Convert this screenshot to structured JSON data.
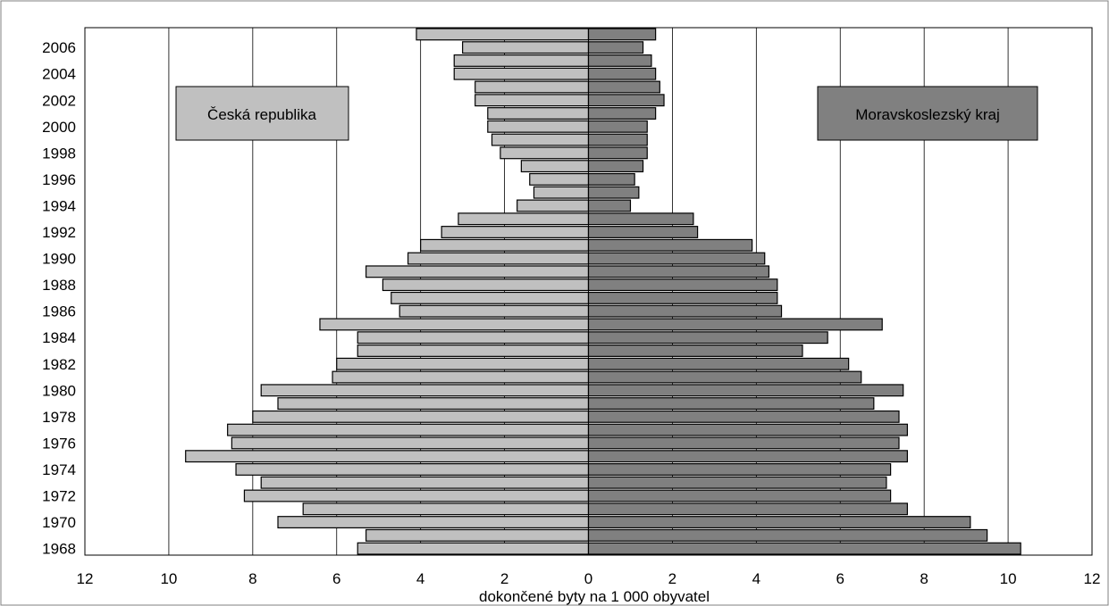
{
  "chart_data": {
    "type": "bar",
    "orientation": "horizontal",
    "layout": "population-pyramid",
    "xlabel": "dokončené byty na 1 000 obyvatel",
    "xlim": [
      -12,
      12
    ],
    "x_tick_labels": [
      "12",
      "10",
      "8",
      "6",
      "4",
      "2",
      "0",
      "2",
      "4",
      "6",
      "8",
      "10",
      "12"
    ],
    "y_tick_labels": [
      "2006",
      "2004",
      "2002",
      "2000",
      "1998",
      "1996",
      "1994",
      "1992",
      "1990",
      "1988",
      "1986",
      "1984",
      "1982",
      "1980",
      "1978",
      "1976",
      "1974",
      "1972",
      "1970",
      "1968"
    ],
    "categories": [
      1968,
      1969,
      1970,
      1971,
      1972,
      1973,
      1974,
      1975,
      1976,
      1977,
      1978,
      1979,
      1980,
      1981,
      1982,
      1983,
      1984,
      1985,
      1986,
      1987,
      1988,
      1989,
      1990,
      1991,
      1992,
      1993,
      1994,
      1995,
      1996,
      1997,
      1998,
      1999,
      2000,
      2001,
      2002,
      2003,
      2004,
      2005,
      2006,
      2007
    ],
    "grid": "vertical",
    "legend": "boxed labels top-left and top-right",
    "series": [
      {
        "name": "Česká republika",
        "side": "left",
        "color": "#c0c0c0",
        "values": [
          5.5,
          5.3,
          7.4,
          6.8,
          8.2,
          7.8,
          8.4,
          9.6,
          8.5,
          8.6,
          8.0,
          7.4,
          7.8,
          6.1,
          6.0,
          5.5,
          5.5,
          6.4,
          4.5,
          4.7,
          4.9,
          5.3,
          4.3,
          4.0,
          3.5,
          3.1,
          1.7,
          1.3,
          1.4,
          1.6,
          2.1,
          2.3,
          2.4,
          2.4,
          2.7,
          2.7,
          3.2,
          3.2,
          3.0,
          4.1
        ]
      },
      {
        "name": "Moravskoslezský kraj",
        "side": "right",
        "color": "#808080",
        "values": [
          10.3,
          9.5,
          9.1,
          7.6,
          7.2,
          7.1,
          7.2,
          7.6,
          7.4,
          7.6,
          7.4,
          6.8,
          7.5,
          6.5,
          6.2,
          5.1,
          5.7,
          7.0,
          4.6,
          4.5,
          4.5,
          4.3,
          4.2,
          3.9,
          2.6,
          2.5,
          1.0,
          1.2,
          1.1,
          1.3,
          1.4,
          1.4,
          1.4,
          1.6,
          1.8,
          1.7,
          1.6,
          1.5,
          1.3,
          1.6
        ]
      }
    ]
  }
}
